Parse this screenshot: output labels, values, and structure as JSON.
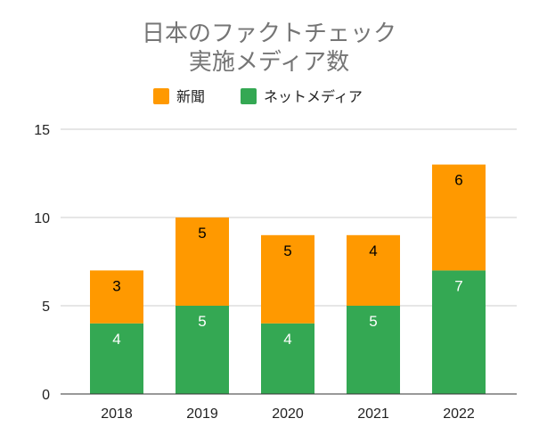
{
  "chart_data": {
    "type": "bar",
    "stacked": true,
    "title_lines": [
      "日本のファクトチェック",
      "実施メディア数"
    ],
    "categories": [
      "2018",
      "2019",
      "2020",
      "2021",
      "2022"
    ],
    "series": [
      {
        "name": "ネットメディア",
        "values": [
          4,
          5,
          4,
          5,
          7
        ],
        "color": "#34a853",
        "label_color": "#ffffff"
      },
      {
        "name": "新聞",
        "values": [
          3,
          5,
          5,
          4,
          6
        ],
        "color": "#ff9900",
        "label_color": "#000000"
      }
    ],
    "legend_order": [
      1,
      0
    ],
    "ylim": [
      0,
      15
    ],
    "yticks": [
      0,
      5,
      10,
      15
    ],
    "grid": true,
    "legend_position": "top",
    "xlabel": "",
    "ylabel": ""
  }
}
